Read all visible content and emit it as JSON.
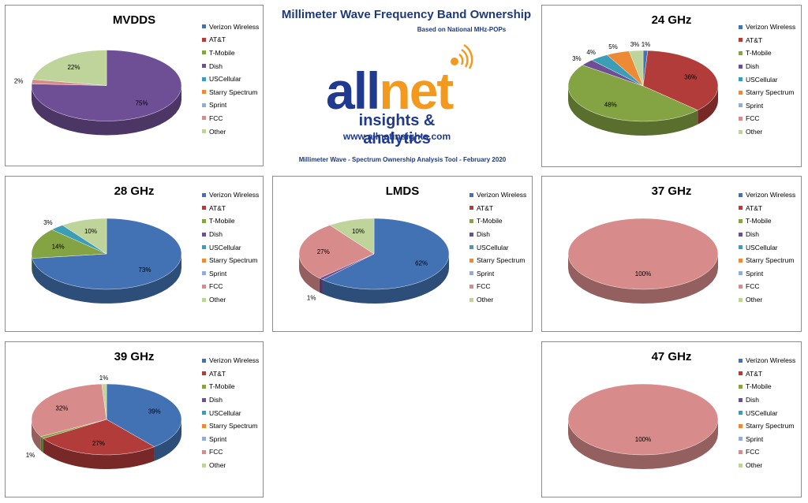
{
  "header": {
    "title": "Millimeter Wave Frequency Band Ownership",
    "subtitle": "Based on National MHz-POPs",
    "logo_all": "all",
    "logo_net": "net",
    "tagline": "insights & analytics",
    "url": "www.allnetinsights.com",
    "tool_note": "Millimeter Wave - Spectrum Ownership Analysis Tool - February 2020"
  },
  "legend_labels": [
    "Verizon Wireless",
    "AT&T",
    "T-Mobile",
    "Dish",
    "USCellular",
    "Starry Spectrum",
    "Sprint",
    "FCC",
    "Other"
  ],
  "colors": [
    "#4372b4",
    "#b13c3a",
    "#84a343",
    "#6e4f96",
    "#3c9db6",
    "#ee8a36",
    "#93add9",
    "#d88b8b",
    "#bfd49a"
  ],
  "chart_data": [
    {
      "type": "pie",
      "title": "MVDDS",
      "categories": [
        "Verizon Wireless",
        "AT&T",
        "T-Mobile",
        "Dish",
        "USCellular",
        "Starry Spectrum",
        "Sprint",
        "FCC",
        "Other"
      ],
      "values": [
        0,
        0,
        0,
        75,
        0,
        0,
        0,
        2,
        22
      ],
      "labels": [
        "",
        "",
        "",
        "75%",
        "",
        "",
        "",
        "2%",
        "22%"
      ],
      "legend": "right"
    },
    {
      "type": "pie",
      "title": "24 GHz",
      "categories": [
        "Verizon Wireless",
        "AT&T",
        "T-Mobile",
        "Dish",
        "USCellular",
        "Starry Spectrum",
        "Sprint",
        "FCC",
        "Other"
      ],
      "values": [
        1,
        36,
        48,
        3,
        4,
        5,
        0,
        0,
        3
      ],
      "labels": [
        "1%",
        "36%",
        "48%",
        "3%",
        "4%",
        "5%",
        "",
        "",
        "3%"
      ],
      "legend": "right"
    },
    {
      "type": "pie",
      "title": "28 GHz",
      "categories": [
        "Verizon Wireless",
        "AT&T",
        "T-Mobile",
        "Dish",
        "USCellular",
        "Starry Spectrum",
        "Sprint",
        "FCC",
        "Other"
      ],
      "values": [
        73,
        0,
        14,
        0,
        3,
        0,
        0,
        0,
        10
      ],
      "labels": [
        "73%",
        "",
        "14%",
        "",
        "3%",
        "",
        "",
        "",
        "10%"
      ],
      "legend": "right"
    },
    {
      "type": "pie",
      "title": "LMDS",
      "categories": [
        "Verizon Wireless",
        "AT&T",
        "T-Mobile",
        "Dish",
        "USCellular",
        "Starry Spectrum",
        "Sprint",
        "FCC",
        "Other"
      ],
      "values": [
        62,
        0,
        0,
        1,
        0,
        0,
        0,
        27,
        10
      ],
      "labels": [
        "62%",
        "",
        "",
        "1%",
        "",
        "",
        "",
        "27%",
        "10%"
      ],
      "legend": "right"
    },
    {
      "type": "pie",
      "title": "37 GHz",
      "categories": [
        "Verizon Wireless",
        "AT&T",
        "T-Mobile",
        "Dish",
        "USCellular",
        "Starry Spectrum",
        "Sprint",
        "FCC",
        "Other"
      ],
      "values": [
        0,
        0,
        0,
        0,
        0,
        0,
        0,
        100,
        0
      ],
      "labels": [
        "",
        "",
        "",
        "",
        "",
        "",
        "",
        "100%",
        ""
      ],
      "legend": "right"
    },
    {
      "type": "pie",
      "title": "39 GHz",
      "categories": [
        "Verizon Wireless",
        "AT&T",
        "T-Mobile",
        "Dish",
        "USCellular",
        "Starry Spectrum",
        "Sprint",
        "FCC",
        "Other"
      ],
      "values": [
        39,
        27,
        1,
        0,
        0,
        0,
        0,
        32,
        1
      ],
      "labels": [
        "39%",
        "27%",
        "1%",
        "",
        "",
        "",
        "",
        "32%",
        "1%"
      ],
      "legend": "right"
    },
    {
      "type": "pie",
      "title": "47 GHz",
      "categories": [
        "Verizon Wireless",
        "AT&T",
        "T-Mobile",
        "Dish",
        "USCellular",
        "Starry Spectrum",
        "Sprint",
        "FCC",
        "Other"
      ],
      "values": [
        0,
        0,
        0,
        0,
        0,
        0,
        0,
        100,
        0
      ],
      "labels": [
        "",
        "",
        "",
        "",
        "",
        "",
        "",
        "100%",
        ""
      ],
      "legend": "right"
    }
  ]
}
